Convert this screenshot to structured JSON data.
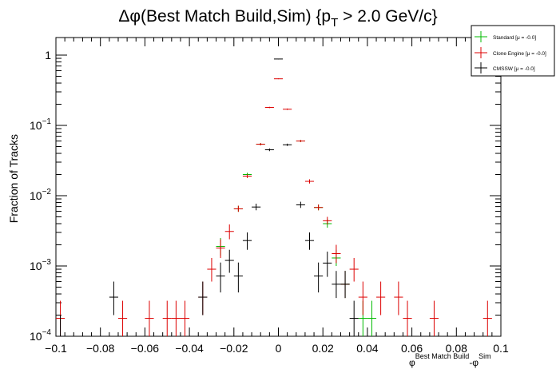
{
  "chart_data": {
    "type": "scatter",
    "title": {
      "prefix": "Δφ(Best Match Build,Sim) {p",
      "sub": "T",
      "suffix": " > 2.0 GeV/c}"
    },
    "ylabel": "Fraction of Tracks",
    "xlabel": {
      "phi1": "φ",
      "sup1": "Best Match Build",
      "mid": "-φ",
      "sup2": "Sim"
    },
    "xlim": [
      -0.1,
      0.1
    ],
    "ylim": [
      0.0001,
      1.5
    ],
    "log_y": true,
    "x_ticks": [
      "−0.1",
      "−0.08",
      "−0.06",
      "−0.04",
      "−0.02",
      "0",
      "0.02",
      "0.04",
      "0.06",
      "0.08",
      "0.1"
    ],
    "y_ticks": [
      {
        "base": "10",
        "exp": "−4",
        "value": 0.0001
      },
      {
        "base": "10",
        "exp": "−3",
        "value": 0.001
      },
      {
        "base": "10",
        "exp": "−2",
        "value": 0.01
      },
      {
        "base": "10",
        "exp": "−1",
        "value": 0.1
      },
      {
        "base": "1",
        "exp": "",
        "value": 1
      }
    ],
    "legend_position": "top-right",
    "bin_half_width": 0.002,
    "series": [
      {
        "name": "Standard",
        "legend_label": "Standard  [μ = -0.0]",
        "color": "#00bb00",
        "points": [
          {
            "x": -0.026,
            "y": 0.0019,
            "err": [
              0.0005,
              0.0006
            ]
          },
          {
            "x": -0.018,
            "y": 0.0065,
            "err": [
              0.0006,
              0.0007
            ]
          },
          {
            "x": -0.014,
            "y": 0.02,
            "err": [
              0.0012,
              0.0012
            ]
          },
          {
            "x": -0.008,
            "y": 0.054,
            "err": [
              0.002,
              0.002
            ]
          },
          {
            "x": 0.01,
            "y": 0.06,
            "err": [
              0.002,
              0.002
            ]
          },
          {
            "x": 0.018,
            "y": 0.0068,
            "err": [
              0.0006,
              0.0007
            ]
          },
          {
            "x": 0.022,
            "y": 0.004,
            "err": [
              0.0005,
              0.0006
            ]
          },
          {
            "x": 0.026,
            "y": 0.0013,
            "err": [
              0.0003,
              0.0004
            ]
          },
          {
            "x": 0.03,
            "y": 0.00055,
            "err": [
              0.0002,
              0.0003
            ]
          },
          {
            "x": 0.038,
            "y": 0.00018,
            "err": [
              8e-05,
              0.00014
            ]
          },
          {
            "x": 0.042,
            "y": 0.00018,
            "err": [
              8e-05,
              0.00014
            ]
          }
        ]
      },
      {
        "name": "Clone Engine",
        "legend_label": "Clone Engine  [μ = -0.0]",
        "color": "#dd0000",
        "points": [
          {
            "x": -0.098,
            "y": 0.00018,
            "err": [
              8e-05,
              0.00014
            ]
          },
          {
            "x": -0.07,
            "y": 0.00018,
            "err": [
              8e-05,
              0.00014
            ]
          },
          {
            "x": -0.058,
            "y": 0.00018,
            "err": [
              8e-05,
              0.00014
            ]
          },
          {
            "x": -0.05,
            "y": 0.00018,
            "err": [
              8e-05,
              0.00014
            ]
          },
          {
            "x": -0.046,
            "y": 0.00018,
            "err": [
              8e-05,
              0.00014
            ]
          },
          {
            "x": -0.042,
            "y": 0.00018,
            "err": [
              8e-05,
              0.00014
            ]
          },
          {
            "x": -0.034,
            "y": 0.00036,
            "err": [
              0.00016,
              0.00024
            ]
          },
          {
            "x": -0.03,
            "y": 0.0009,
            "err": [
              0.0003,
              0.0004
            ]
          },
          {
            "x": -0.026,
            "y": 0.0018,
            "err": [
              0.0005,
              0.0006
            ]
          },
          {
            "x": -0.022,
            "y": 0.0031,
            "err": [
              0.0007,
              0.0008
            ]
          },
          {
            "x": -0.018,
            "y": 0.0065,
            "err": [
              0.0006,
              0.0007
            ]
          },
          {
            "x": -0.014,
            "y": 0.019,
            "err": [
              0.0012,
              0.0012
            ]
          },
          {
            "x": -0.008,
            "y": 0.054,
            "err": [
              0.002,
              0.002
            ]
          },
          {
            "x": -0.004,
            "y": 0.18,
            "err": [
              0.004,
              0.004
            ]
          },
          {
            "x": 0.0,
            "y": 0.46,
            "err": [
              0.006,
              0.006
            ]
          },
          {
            "x": 0.004,
            "y": 0.17,
            "err": [
              0.004,
              0.004
            ]
          },
          {
            "x": 0.01,
            "y": 0.06,
            "err": [
              0.002,
              0.002
            ]
          },
          {
            "x": 0.014,
            "y": 0.016,
            "err": [
              0.0011,
              0.0011
            ]
          },
          {
            "x": 0.018,
            "y": 0.0068,
            "err": [
              0.0006,
              0.0007
            ]
          },
          {
            "x": 0.022,
            "y": 0.0044,
            "err": [
              0.0005,
              0.0006
            ]
          },
          {
            "x": 0.026,
            "y": 0.0015,
            "err": [
              0.0004,
              0.0005
            ]
          },
          {
            "x": 0.03,
            "y": 0.00055,
            "err": [
              0.0002,
              0.0003
            ]
          },
          {
            "x": 0.034,
            "y": 0.0009,
            "err": [
              0.0003,
              0.0004
            ]
          },
          {
            "x": 0.038,
            "y": 0.00036,
            "err": [
              0.00016,
              0.00024
            ]
          },
          {
            "x": 0.046,
            "y": 0.00036,
            "err": [
              0.00016,
              0.00024
            ]
          },
          {
            "x": 0.054,
            "y": 0.00036,
            "err": [
              0.00016,
              0.00024
            ]
          },
          {
            "x": 0.058,
            "y": 0.00018,
            "err": [
              8e-05,
              0.00014
            ]
          },
          {
            "x": 0.07,
            "y": 0.00018,
            "err": [
              8e-05,
              0.00014
            ]
          },
          {
            "x": 0.094,
            "y": 0.00018,
            "err": [
              8e-05,
              0.00014
            ]
          }
        ]
      },
      {
        "name": "CMSSW",
        "legend_label": "CMSSW  [μ = -0.0]",
        "color": "#000000",
        "points": [
          {
            "x": -0.098,
            "y": 0.0001,
            "err": [
              5e-05,
              0.0001
            ]
          },
          {
            "x": -0.074,
            "y": 0.00036,
            "err": [
              0.00016,
              0.00024
            ]
          },
          {
            "x": -0.034,
            "y": 0.00036,
            "err": [
              0.00016,
              0.00024
            ]
          },
          {
            "x": -0.026,
            "y": 0.00072,
            "err": [
              0.0003,
              0.0004
            ]
          },
          {
            "x": -0.022,
            "y": 0.0012,
            "err": [
              0.0004,
              0.0005
            ]
          },
          {
            "x": -0.018,
            "y": 0.00072,
            "err": [
              0.0003,
              0.0004
            ]
          },
          {
            "x": -0.014,
            "y": 0.0023,
            "err": [
              0.0006,
              0.0007
            ]
          },
          {
            "x": -0.01,
            "y": 0.0069,
            "err": [
              0.0007,
              0.0008
            ]
          },
          {
            "x": -0.004,
            "y": 0.045,
            "err": [
              0.002,
              0.002
            ]
          },
          {
            "x": 0.0,
            "y": 0.88,
            "err": [
              0.008,
              0.008
            ]
          },
          {
            "x": 0.004,
            "y": 0.053,
            "err": [
              0.002,
              0.002
            ]
          },
          {
            "x": 0.01,
            "y": 0.0074,
            "err": [
              0.0007,
              0.0008
            ]
          },
          {
            "x": 0.014,
            "y": 0.0023,
            "err": [
              0.0006,
              0.0007
            ]
          },
          {
            "x": 0.018,
            "y": 0.00072,
            "err": [
              0.0003,
              0.0004
            ]
          },
          {
            "x": 0.022,
            "y": 0.0011,
            "err": [
              0.0004,
              0.0005
            ]
          },
          {
            "x": 0.026,
            "y": 0.00055,
            "err": [
              0.0002,
              0.0003
            ]
          },
          {
            "x": 0.03,
            "y": 0.00055,
            "err": [
              0.0002,
              0.0003
            ]
          },
          {
            "x": 0.034,
            "y": 0.00018,
            "err": [
              8e-05,
              0.00014
            ]
          }
        ]
      }
    ]
  }
}
